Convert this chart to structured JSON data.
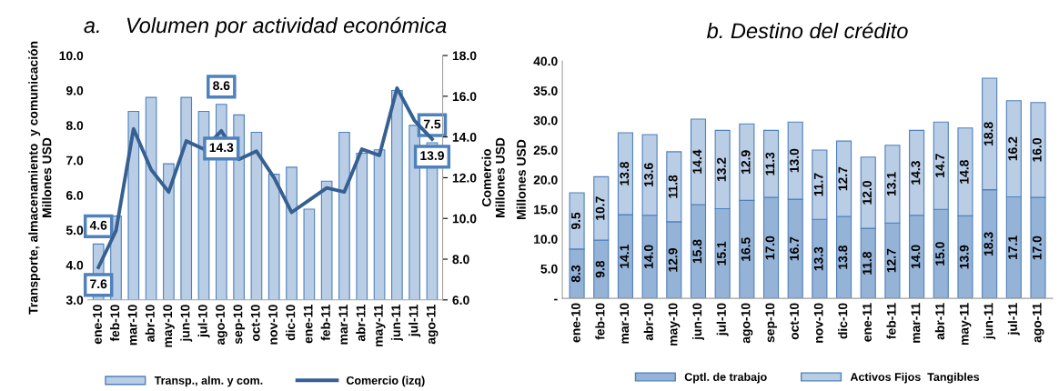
{
  "chart_data": [
    {
      "type": "bar",
      "title": "a.    Volumen por actividad económica",
      "ylabel": "Transporte, almacenamiento  y comunicación\nMillones USD",
      "y2label": "Comercio\nMillones USD",
      "categories": [
        "ene-10",
        "feb-10",
        "mar-10",
        "abr-10",
        "may-10",
        "jun-10",
        "jul-10",
        "ago-10",
        "sep-10",
        "oct-10",
        "nov-10",
        "dic-10",
        "ene-11",
        "feb-11",
        "mar-11",
        "abr-11",
        "may-11",
        "jun-11",
        "jul-11",
        "ago-11"
      ],
      "series": [
        {
          "name": "Transp., alm. y com.",
          "type": "bar",
          "color": "#b9cde5",
          "values": [
            4.6,
            5.4,
            8.4,
            8.8,
            6.9,
            8.8,
            8.4,
            8.6,
            8.3,
            7.8,
            6.6,
            6.8,
            5.6,
            6.4,
            7.8,
            7.2,
            7.3,
            9.0,
            8.0,
            7.5
          ],
          "value_labels": [
            "4.6",
            null,
            null,
            null,
            null,
            null,
            null,
            "8.6",
            null,
            null,
            null,
            null,
            null,
            null,
            null,
            null,
            null,
            null,
            null,
            "7.5"
          ]
        },
        {
          "name": "Comercio (izq)",
          "type": "line",
          "axis": "y2",
          "color": "#376092",
          "values": [
            7.6,
            9.4,
            14.4,
            12.4,
            11.3,
            13.8,
            13.4,
            14.3,
            12.9,
            13.3,
            12.0,
            10.3,
            10.9,
            11.5,
            11.3,
            13.4,
            13.1,
            16.4,
            14.8,
            13.9
          ],
          "value_labels": [
            "7.6",
            null,
            null,
            null,
            null,
            null,
            null,
            "14.3",
            null,
            null,
            null,
            null,
            null,
            null,
            null,
            null,
            null,
            null,
            null,
            "13.9"
          ]
        }
      ],
      "ylim": [
        3,
        10
      ],
      "yticks": [
        {
          "value": 3,
          "label": "3.0"
        },
        {
          "value": 4,
          "label": "4.0"
        },
        {
          "value": 5,
          "label": "5.0"
        },
        {
          "value": 6,
          "label": "6.0"
        },
        {
          "value": 7,
          "label": "7.0"
        },
        {
          "value": 8,
          "label": "8.0"
        },
        {
          "value": 9,
          "label": "9.0"
        },
        {
          "value": 10,
          "label": "10.0"
        }
      ],
      "y2lim": [
        6,
        18
      ],
      "y2ticks": [
        {
          "value": 6,
          "label": "6.0"
        },
        {
          "value": 8,
          "label": "8.0"
        },
        {
          "value": 10,
          "label": "10.0"
        },
        {
          "value": 12,
          "label": "12.0"
        },
        {
          "value": 14,
          "label": "14.0"
        },
        {
          "value": 16,
          "label": "16.0"
        },
        {
          "value": 18,
          "label": "18.0"
        }
      ],
      "legend": "bottom"
    },
    {
      "type": "bar",
      "title": "b. Destino del crédito",
      "ylabel": "Millones USD",
      "stacked": true,
      "categories": [
        "ene-10",
        "feb-10",
        "mar-10",
        "abr-10",
        "may-10",
        "jun-10",
        "jul-10",
        "ago-10",
        "sep-10",
        "oct-10",
        "nov-10",
        "dic-10",
        "ene-11",
        "feb-11",
        "mar-11",
        "abr-11",
        "may-11",
        "jun-11",
        "jul-11",
        "ago-11"
      ],
      "series": [
        {
          "name": "Cptl. de trabajo",
          "color": "#95b3d7",
          "values": [
            8.3,
            9.8,
            14.1,
            14.0,
            12.9,
            15.8,
            15.1,
            16.5,
            17.0,
            16.7,
            13.3,
            13.8,
            11.8,
            12.7,
            14.0,
            15.0,
            13.9,
            18.3,
            17.1,
            17.0
          ],
          "value_labels": [
            "8.3",
            "9.8",
            "14.1",
            "14.0",
            "12.9",
            "15.8",
            "15.1",
            "16.5",
            "17.0",
            "16.7",
            "13.3",
            "13.8",
            "11.8",
            "12.7",
            "14.0",
            "15.0",
            "13.9",
            "18.3",
            "17.1",
            "17.0"
          ]
        },
        {
          "name": "Activos Fijos  Tangibles",
          "color": "#b9cde5",
          "values": [
            9.5,
            10.7,
            13.8,
            13.6,
            11.8,
            14.4,
            13.2,
            12.9,
            11.3,
            13.0,
            11.7,
            12.7,
            12.0,
            13.1,
            14.3,
            14.7,
            14.8,
            18.8,
            16.2,
            16.0
          ],
          "value_labels": [
            "9.5",
            "10.7",
            "13.8",
            "13.6",
            "11.8",
            "14.4",
            "13.2",
            "12.9",
            "11.3",
            "13.0",
            "11.7",
            "12.7",
            "12.0",
            "13.1",
            "14.3",
            "14.7",
            "14.8",
            "18.8",
            "16.2",
            "16.0"
          ]
        }
      ],
      "ylim": [
        0,
        40
      ],
      "yticks": [
        {
          "value": 0,
          "label": "-"
        },
        {
          "value": 5,
          "label": "5.0"
        },
        {
          "value": 10,
          "label": "10.0"
        },
        {
          "value": 15,
          "label": "15.0"
        },
        {
          "value": 20,
          "label": "20.0"
        },
        {
          "value": 25,
          "label": "25.0"
        },
        {
          "value": 30,
          "label": "30.0"
        },
        {
          "value": 35,
          "label": "35.0"
        },
        {
          "value": 40,
          "label": "40.0"
        }
      ],
      "legend": "bottom"
    }
  ]
}
